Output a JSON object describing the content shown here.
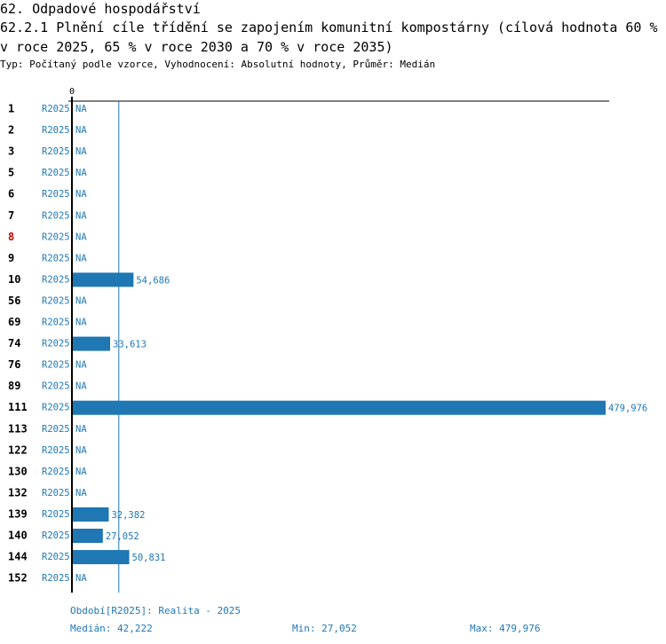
{
  "header": {
    "section": "62. Odpadové hospodářství",
    "indicator": "62.2.1 Plnění cíle třídění se zapojením komunitní kompostárny (cílová hodnota 60 % v roce 2025, 65 % v roce 2030 a 70 % v roce 2035)",
    "type_line": "Typ: Počítaný podle vzorce, Vyhodnocení: Absolutní hodnoty, Průměr: Medián"
  },
  "colors": {
    "bar": "#1f77b4",
    "label": "#1f77b4",
    "highlight": "#cc0000",
    "axis": "#000000"
  },
  "chart_data": {
    "type": "bar",
    "orientation": "horizontal",
    "axis_zero_label": "0",
    "xlim": [
      0,
      479976
    ],
    "median_line": 42222,
    "rows": [
      {
        "id": "1",
        "period": "R2025",
        "value": null,
        "label": "NA"
      },
      {
        "id": "2",
        "period": "R2025",
        "value": null,
        "label": "NA"
      },
      {
        "id": "3",
        "period": "R2025",
        "value": null,
        "label": "NA"
      },
      {
        "id": "5",
        "period": "R2025",
        "value": null,
        "label": "NA"
      },
      {
        "id": "6",
        "period": "R2025",
        "value": null,
        "label": "NA"
      },
      {
        "id": "7",
        "period": "R2025",
        "value": null,
        "label": "NA"
      },
      {
        "id": "8",
        "period": "R2025",
        "value": null,
        "label": "NA",
        "highlight": true
      },
      {
        "id": "9",
        "period": "R2025",
        "value": null,
        "label": "NA"
      },
      {
        "id": "10",
        "period": "R2025",
        "value": 54686,
        "label": "54,686"
      },
      {
        "id": "56",
        "period": "R2025",
        "value": null,
        "label": "NA"
      },
      {
        "id": "69",
        "period": "R2025",
        "value": null,
        "label": "NA"
      },
      {
        "id": "74",
        "period": "R2025",
        "value": 33613,
        "label": "33,613"
      },
      {
        "id": "76",
        "period": "R2025",
        "value": null,
        "label": "NA"
      },
      {
        "id": "89",
        "period": "R2025",
        "value": null,
        "label": "NA"
      },
      {
        "id": "111",
        "period": "R2025",
        "value": 479976,
        "label": "479,976"
      },
      {
        "id": "113",
        "period": "R2025",
        "value": null,
        "label": "NA"
      },
      {
        "id": "122",
        "period": "R2025",
        "value": null,
        "label": "NA"
      },
      {
        "id": "130",
        "period": "R2025",
        "value": null,
        "label": "NA"
      },
      {
        "id": "132",
        "period": "R2025",
        "value": null,
        "label": "NA"
      },
      {
        "id": "139",
        "period": "R2025",
        "value": 32382,
        "label": "32,382"
      },
      {
        "id": "140",
        "period": "R2025",
        "value": 27052,
        "label": "27,052"
      },
      {
        "id": "144",
        "period": "R2025",
        "value": 50831,
        "label": "50,831"
      },
      {
        "id": "152",
        "period": "R2025",
        "value": null,
        "label": "NA"
      }
    ]
  },
  "footer": {
    "period": "Období[R2025]: Realita - 2025",
    "median": "Medián: 42,222",
    "min": "Min: 27,052",
    "max": "Max: 479,976"
  }
}
